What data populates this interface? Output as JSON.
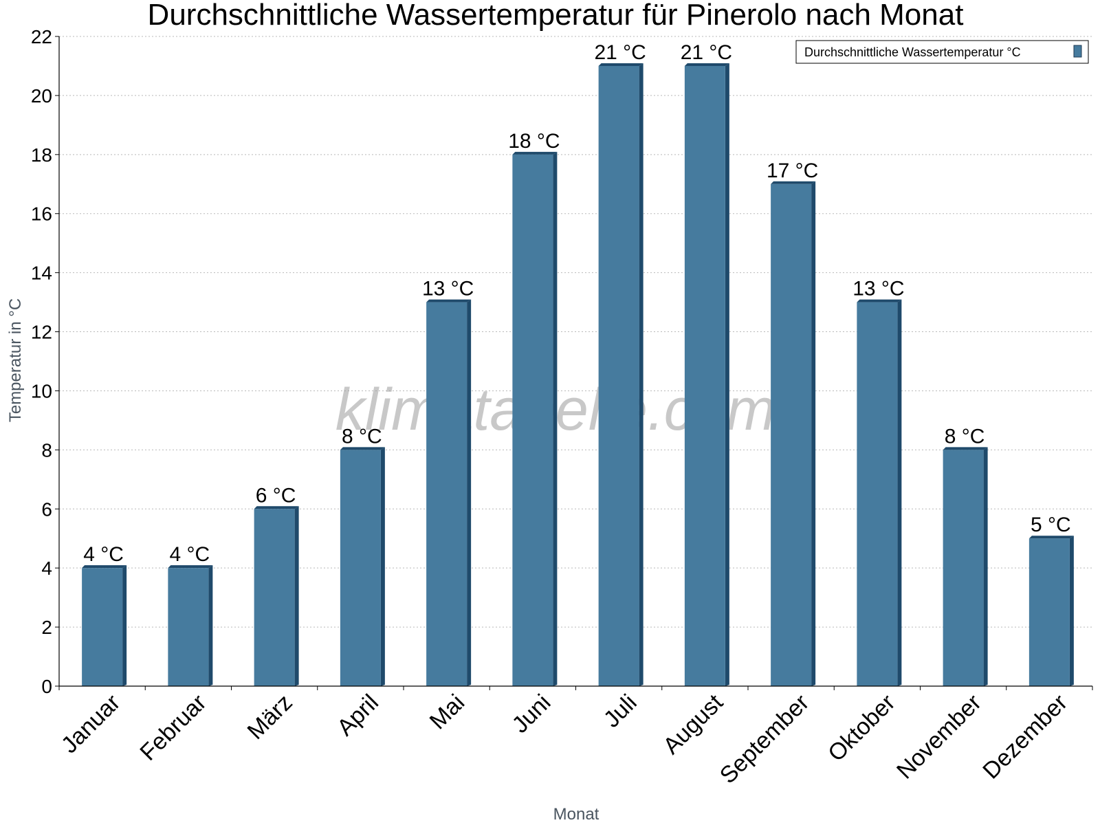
{
  "chart_data": {
    "type": "bar",
    "title": "Durchschnittliche Wassertemperatur für Pinerolo nach Monat",
    "xlabel": "Monat",
    "ylabel": "Temperatur in °C",
    "ylim": [
      0,
      22
    ],
    "yticks": [
      0,
      2,
      4,
      6,
      8,
      10,
      12,
      14,
      16,
      18,
      20,
      22
    ],
    "grid": true,
    "legend_position": "top-right",
    "categories": [
      "Januar",
      "Februar",
      "März",
      "April",
      "Mai",
      "Juni",
      "Juli",
      "August",
      "September",
      "Oktober",
      "November",
      "Dezember"
    ],
    "series": [
      {
        "name": "Durchschnittliche Wassertemperatur °C",
        "values": [
          4,
          4,
          6,
          8,
          13,
          18,
          21,
          21,
          17,
          13,
          8,
          5
        ],
        "labels": [
          "4 °C",
          "4 °C",
          "6 °C",
          "8 °C",
          "13 °C",
          "18 °C",
          "21 °C",
          "21 °C",
          "17 °C",
          "13 °C",
          "8 °C",
          "5 °C"
        ],
        "color": "#467b9e",
        "shade_color": "#1f4a6b"
      }
    ]
  },
  "watermark": "klimatabelle.com"
}
